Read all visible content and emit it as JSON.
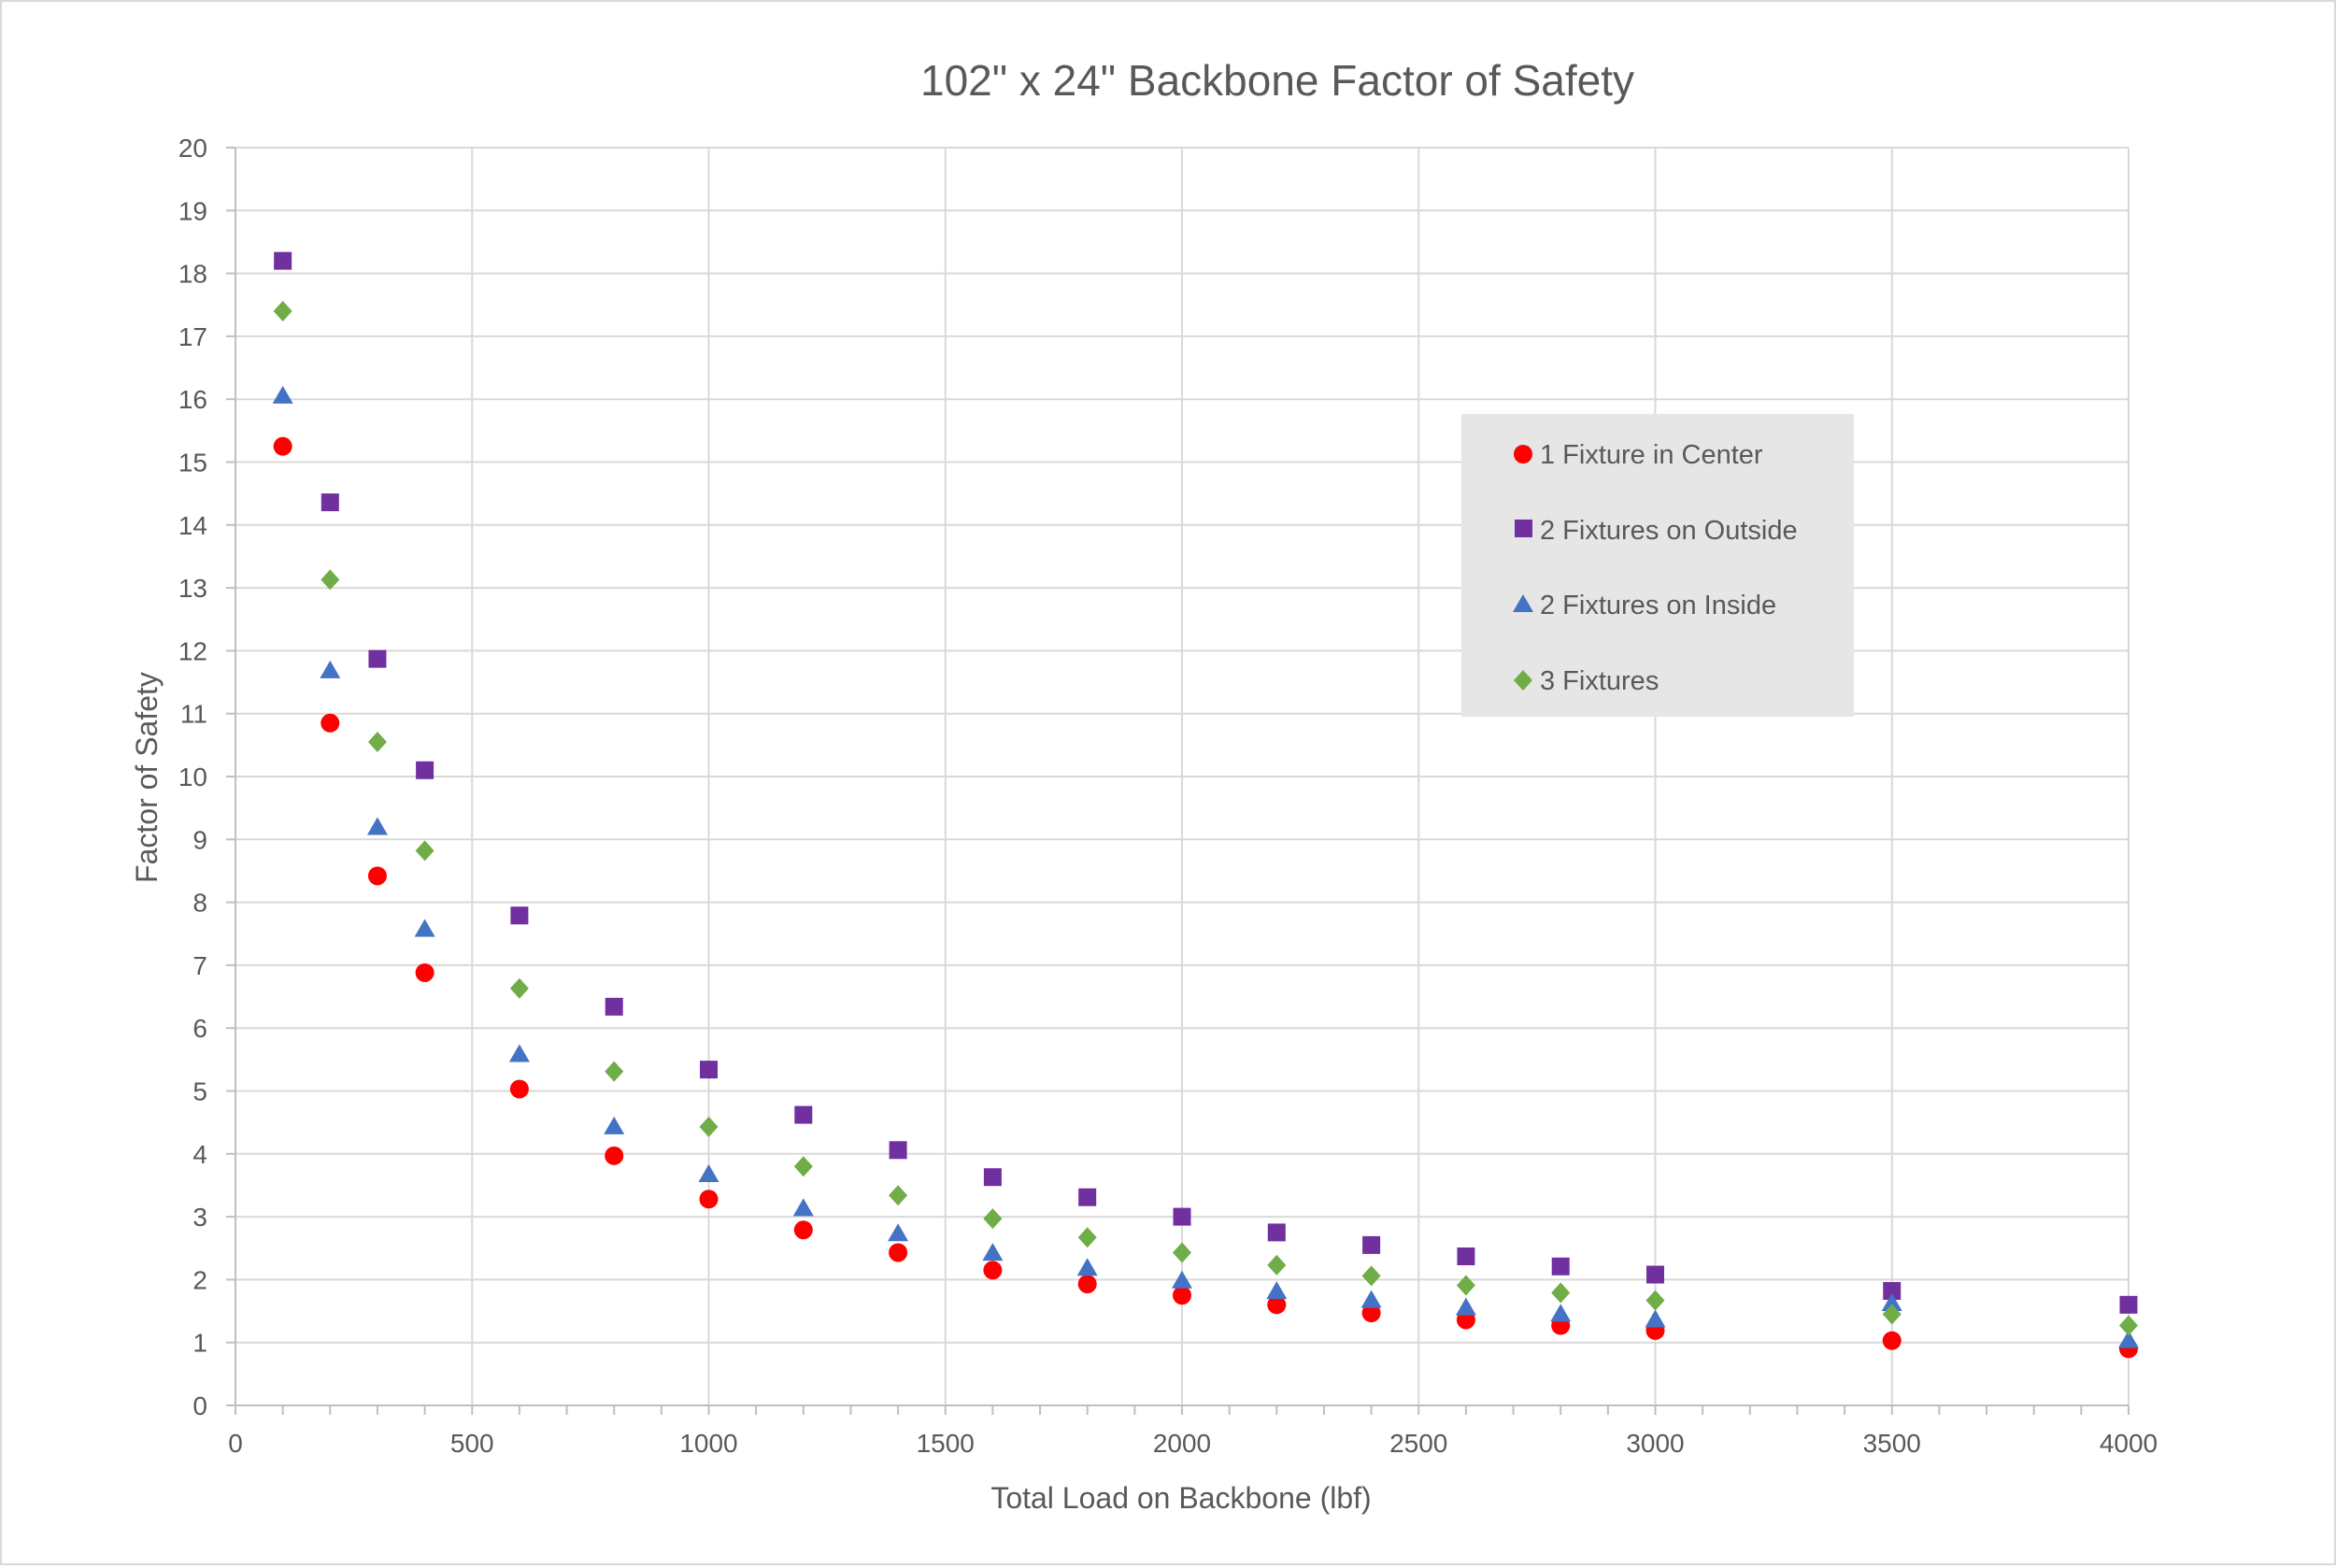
{
  "chart_data": {
    "type": "scatter",
    "title": "102\" x 24\" Backbone Factor of Safety",
    "xlabel": "Total Load on Backbone (lbf)",
    "ylabel": "Factor of Safety",
    "xlim": [
      0,
      4000
    ],
    "ylim": [
      0,
      20
    ],
    "x_ticks": [
      0,
      500,
      1000,
      1500,
      2000,
      2500,
      3000,
      3500,
      4000
    ],
    "x_tick_labels": [
      "0",
      "500",
      "1000",
      "1500",
      "2000",
      "2500",
      "3000",
      "3500",
      "4000"
    ],
    "y_ticks": [
      0,
      1,
      2,
      3,
      4,
      5,
      6,
      7,
      8,
      9,
      10,
      11,
      12,
      13,
      14,
      15,
      16,
      17,
      18,
      19,
      20
    ],
    "y_tick_labels": [
      "0",
      "1",
      "2",
      "3",
      "4",
      "5",
      "6",
      "7",
      "8",
      "9",
      "10",
      "11",
      "12",
      "13",
      "14",
      "15",
      "16",
      "17",
      "18",
      "19",
      "20"
    ],
    "x_minor_step": 100,
    "grid": true,
    "legend_position": "right-center",
    "x": [
      100,
      200,
      300,
      400,
      600,
      800,
      1000,
      1200,
      1400,
      1600,
      1800,
      2000,
      2200,
      2400,
      2600,
      2800,
      3000,
      3500,
      4000
    ],
    "series": [
      {
        "name": "1 Fixture in Center",
        "marker": "circle",
        "color": "#ff0000",
        "values": [
          15.25,
          10.85,
          8.42,
          6.88,
          5.03,
          3.97,
          3.28,
          2.79,
          2.43,
          2.15,
          1.93,
          1.75,
          1.6,
          1.47,
          1.36,
          1.27,
          1.19,
          1.03,
          0.9
        ]
      },
      {
        "name": "2 Fixtures on Outside",
        "marker": "square",
        "color": "#7030a0",
        "values": [
          18.2,
          14.36,
          11.87,
          10.1,
          7.79,
          6.34,
          5.34,
          4.62,
          4.06,
          3.63,
          3.31,
          3.0,
          2.75,
          2.55,
          2.37,
          2.21,
          2.08,
          1.82,
          1.6
        ]
      },
      {
        "name": "2 Fixtures on Inside",
        "marker": "triangle",
        "color": "#4472c4",
        "values": [
          16.05,
          11.68,
          9.19,
          7.57,
          5.58,
          4.43,
          3.67,
          3.13,
          2.73,
          2.42,
          2.18,
          1.98,
          1.81,
          1.67,
          1.55,
          1.45,
          1.36,
          1.62,
          1.03
        ]
      },
      {
        "name": "3 Fixtures",
        "marker": "diamond",
        "color": "#70ad47",
        "values": [
          17.4,
          13.13,
          10.55,
          8.82,
          6.63,
          5.31,
          4.43,
          3.8,
          3.34,
          2.97,
          2.67,
          2.43,
          2.23,
          2.06,
          1.91,
          1.79,
          1.67,
          1.45,
          1.27
        ]
      }
    ]
  }
}
